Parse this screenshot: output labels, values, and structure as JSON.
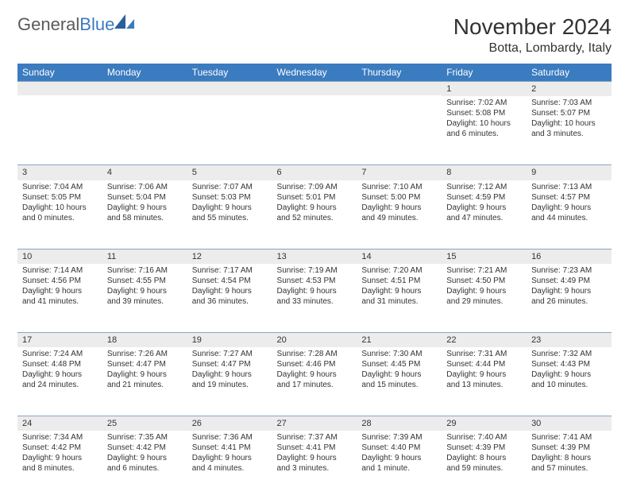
{
  "logo": {
    "textGray": "General",
    "textBlue": "Blue"
  },
  "title": "November 2024",
  "location": "Botta, Lombardy, Italy",
  "headerColor": "#3b7bbf",
  "dayNumBg": "#ececec",
  "borderColor": "#8aa5c2",
  "dayNames": [
    "Sunday",
    "Monday",
    "Tuesday",
    "Wednesday",
    "Thursday",
    "Friday",
    "Saturday"
  ],
  "weeks": [
    [
      null,
      null,
      null,
      null,
      null,
      {
        "n": "1",
        "sr": "Sunrise: 7:02 AM",
        "ss": "Sunset: 5:08 PM",
        "dl1": "Daylight: 10 hours",
        "dl2": "and 6 minutes."
      },
      {
        "n": "2",
        "sr": "Sunrise: 7:03 AM",
        "ss": "Sunset: 5:07 PM",
        "dl1": "Daylight: 10 hours",
        "dl2": "and 3 minutes."
      }
    ],
    [
      {
        "n": "3",
        "sr": "Sunrise: 7:04 AM",
        "ss": "Sunset: 5:05 PM",
        "dl1": "Daylight: 10 hours",
        "dl2": "and 0 minutes."
      },
      {
        "n": "4",
        "sr": "Sunrise: 7:06 AM",
        "ss": "Sunset: 5:04 PM",
        "dl1": "Daylight: 9 hours",
        "dl2": "and 58 minutes."
      },
      {
        "n": "5",
        "sr": "Sunrise: 7:07 AM",
        "ss": "Sunset: 5:03 PM",
        "dl1": "Daylight: 9 hours",
        "dl2": "and 55 minutes."
      },
      {
        "n": "6",
        "sr": "Sunrise: 7:09 AM",
        "ss": "Sunset: 5:01 PM",
        "dl1": "Daylight: 9 hours",
        "dl2": "and 52 minutes."
      },
      {
        "n": "7",
        "sr": "Sunrise: 7:10 AM",
        "ss": "Sunset: 5:00 PM",
        "dl1": "Daylight: 9 hours",
        "dl2": "and 49 minutes."
      },
      {
        "n": "8",
        "sr": "Sunrise: 7:12 AM",
        "ss": "Sunset: 4:59 PM",
        "dl1": "Daylight: 9 hours",
        "dl2": "and 47 minutes."
      },
      {
        "n": "9",
        "sr": "Sunrise: 7:13 AM",
        "ss": "Sunset: 4:57 PM",
        "dl1": "Daylight: 9 hours",
        "dl2": "and 44 minutes."
      }
    ],
    [
      {
        "n": "10",
        "sr": "Sunrise: 7:14 AM",
        "ss": "Sunset: 4:56 PM",
        "dl1": "Daylight: 9 hours",
        "dl2": "and 41 minutes."
      },
      {
        "n": "11",
        "sr": "Sunrise: 7:16 AM",
        "ss": "Sunset: 4:55 PM",
        "dl1": "Daylight: 9 hours",
        "dl2": "and 39 minutes."
      },
      {
        "n": "12",
        "sr": "Sunrise: 7:17 AM",
        "ss": "Sunset: 4:54 PM",
        "dl1": "Daylight: 9 hours",
        "dl2": "and 36 minutes."
      },
      {
        "n": "13",
        "sr": "Sunrise: 7:19 AM",
        "ss": "Sunset: 4:53 PM",
        "dl1": "Daylight: 9 hours",
        "dl2": "and 33 minutes."
      },
      {
        "n": "14",
        "sr": "Sunrise: 7:20 AM",
        "ss": "Sunset: 4:51 PM",
        "dl1": "Daylight: 9 hours",
        "dl2": "and 31 minutes."
      },
      {
        "n": "15",
        "sr": "Sunrise: 7:21 AM",
        "ss": "Sunset: 4:50 PM",
        "dl1": "Daylight: 9 hours",
        "dl2": "and 29 minutes."
      },
      {
        "n": "16",
        "sr": "Sunrise: 7:23 AM",
        "ss": "Sunset: 4:49 PM",
        "dl1": "Daylight: 9 hours",
        "dl2": "and 26 minutes."
      }
    ],
    [
      {
        "n": "17",
        "sr": "Sunrise: 7:24 AM",
        "ss": "Sunset: 4:48 PM",
        "dl1": "Daylight: 9 hours",
        "dl2": "and 24 minutes."
      },
      {
        "n": "18",
        "sr": "Sunrise: 7:26 AM",
        "ss": "Sunset: 4:47 PM",
        "dl1": "Daylight: 9 hours",
        "dl2": "and 21 minutes."
      },
      {
        "n": "19",
        "sr": "Sunrise: 7:27 AM",
        "ss": "Sunset: 4:47 PM",
        "dl1": "Daylight: 9 hours",
        "dl2": "and 19 minutes."
      },
      {
        "n": "20",
        "sr": "Sunrise: 7:28 AM",
        "ss": "Sunset: 4:46 PM",
        "dl1": "Daylight: 9 hours",
        "dl2": "and 17 minutes."
      },
      {
        "n": "21",
        "sr": "Sunrise: 7:30 AM",
        "ss": "Sunset: 4:45 PM",
        "dl1": "Daylight: 9 hours",
        "dl2": "and 15 minutes."
      },
      {
        "n": "22",
        "sr": "Sunrise: 7:31 AM",
        "ss": "Sunset: 4:44 PM",
        "dl1": "Daylight: 9 hours",
        "dl2": "and 13 minutes."
      },
      {
        "n": "23",
        "sr": "Sunrise: 7:32 AM",
        "ss": "Sunset: 4:43 PM",
        "dl1": "Daylight: 9 hours",
        "dl2": "and 10 minutes."
      }
    ],
    [
      {
        "n": "24",
        "sr": "Sunrise: 7:34 AM",
        "ss": "Sunset: 4:42 PM",
        "dl1": "Daylight: 9 hours",
        "dl2": "and 8 minutes."
      },
      {
        "n": "25",
        "sr": "Sunrise: 7:35 AM",
        "ss": "Sunset: 4:42 PM",
        "dl1": "Daylight: 9 hours",
        "dl2": "and 6 minutes."
      },
      {
        "n": "26",
        "sr": "Sunrise: 7:36 AM",
        "ss": "Sunset: 4:41 PM",
        "dl1": "Daylight: 9 hours",
        "dl2": "and 4 minutes."
      },
      {
        "n": "27",
        "sr": "Sunrise: 7:37 AM",
        "ss": "Sunset: 4:41 PM",
        "dl1": "Daylight: 9 hours",
        "dl2": "and 3 minutes."
      },
      {
        "n": "28",
        "sr": "Sunrise: 7:39 AM",
        "ss": "Sunset: 4:40 PM",
        "dl1": "Daylight: 9 hours",
        "dl2": "and 1 minute."
      },
      {
        "n": "29",
        "sr": "Sunrise: 7:40 AM",
        "ss": "Sunset: 4:39 PM",
        "dl1": "Daylight: 8 hours",
        "dl2": "and 59 minutes."
      },
      {
        "n": "30",
        "sr": "Sunrise: 7:41 AM",
        "ss": "Sunset: 4:39 PM",
        "dl1": "Daylight: 8 hours",
        "dl2": "and 57 minutes."
      }
    ]
  ]
}
